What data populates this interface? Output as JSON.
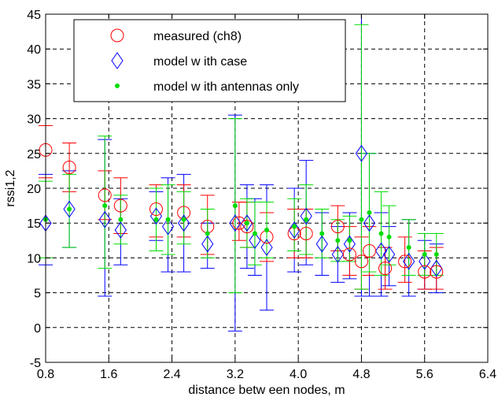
{
  "chart_data": {
    "type": "scatter",
    "title": "",
    "xlabel": "distance betw een nodes, m",
    "ylabel": "rssi1,2",
    "xlim": [
      0.8,
      6.4
    ],
    "ylim": [
      -5,
      45
    ],
    "xticks": [
      "0.8",
      "1.6",
      "2.4",
      "3.2",
      "4.0",
      "4.8",
      "5.6",
      "6.4"
    ],
    "yticks": [
      "-5",
      "0",
      "5",
      "10",
      "15",
      "20",
      "25",
      "30",
      "35",
      "40",
      "45"
    ],
    "grid": true,
    "legend_position": "top-left",
    "series": [
      {
        "name": "measured (ch8)",
        "marker": "circle",
        "color": "#ff0000",
        "points": [
          {
            "x": 0.8,
            "y": 25.5,
            "lo": 21.5,
            "hi": 29.0
          },
          {
            "x": 1.1,
            "y": 23.0,
            "lo": 19.5,
            "hi": 26.5
          },
          {
            "x": 1.55,
            "y": 19.0,
            "lo": 15.5,
            "hi": 22.5
          },
          {
            "x": 1.75,
            "y": 17.5,
            "lo": 13.5,
            "hi": 21.5
          },
          {
            "x": 2.2,
            "y": 17.0,
            "lo": 13.0,
            "hi": 20.5
          },
          {
            "x": 2.55,
            "y": 16.5,
            "lo": 13.0,
            "hi": 20.5
          },
          {
            "x": 2.85,
            "y": 14.5,
            "lo": 10.5,
            "hi": 19.0
          },
          {
            "x": 3.25,
            "y": 15.0,
            "lo": 12.5,
            "hi": 18.0
          },
          {
            "x": 3.35,
            "y": 14.5,
            "lo": 11.5,
            "hi": 18.0
          },
          {
            "x": 3.6,
            "y": 13.0,
            "lo": 9.5,
            "hi": 16.5
          },
          {
            "x": 3.95,
            "y": 13.5,
            "lo": 10.0,
            "hi": 17.0
          },
          {
            "x": 4.1,
            "y": 13.5,
            "lo": 10.0,
            "hi": 17.0
          },
          {
            "x": 4.5,
            "y": 14.5,
            "lo": 11.0,
            "hi": 17.5
          },
          {
            "x": 4.65,
            "y": 10.5,
            "lo": 7.5,
            "hi": 14.5
          },
          {
            "x": 4.8,
            "y": 9.5,
            "lo": 5.5,
            "hi": 13.0
          },
          {
            "x": 4.9,
            "y": 11.0,
            "lo": 7.5,
            "hi": 14.5
          },
          {
            "x": 5.1,
            "y": 8.5,
            "lo": 5.5,
            "hi": 11.5
          },
          {
            "x": 5.35,
            "y": 9.5,
            "lo": 6.5,
            "hi": 13.0
          },
          {
            "x": 5.6,
            "y": 8.0,
            "lo": 5.5,
            "hi": 11.0
          },
          {
            "x": 5.75,
            "y": 8.0,
            "lo": 5.5,
            "hi": 11.5
          }
        ]
      },
      {
        "name": "model w ith case",
        "marker": "diamond",
        "color": "#0000ff",
        "points": [
          {
            "x": 0.8,
            "y": 15.0,
            "lo": 9.0,
            "hi": 22.0
          },
          {
            "x": 1.1,
            "y": 17.0,
            "lo": 11.5,
            "hi": 22.5
          },
          {
            "x": 1.55,
            "y": 15.5,
            "lo": 4.5,
            "hi": 27.0
          },
          {
            "x": 1.75,
            "y": 14.0,
            "lo": 9.0,
            "hi": 18.5
          },
          {
            "x": 2.2,
            "y": 16.0,
            "lo": 12.5,
            "hi": 19.5
          },
          {
            "x": 2.35,
            "y": 14.5,
            "lo": 8.0,
            "hi": 21.5
          },
          {
            "x": 2.55,
            "y": 15.0,
            "lo": 8.0,
            "hi": 22.0
          },
          {
            "x": 2.85,
            "y": 12.0,
            "lo": 8.5,
            "hi": 15.0
          },
          {
            "x": 3.2,
            "y": 15.0,
            "lo": -0.5,
            "hi": 30.5
          },
          {
            "x": 3.35,
            "y": 15.0,
            "lo": 8.5,
            "hi": 20.5
          },
          {
            "x": 3.45,
            "y": 12.5,
            "lo": 7.5,
            "hi": 18.5
          },
          {
            "x": 3.6,
            "y": 11.5,
            "lo": 2.5,
            "hi": 20.5
          },
          {
            "x": 3.95,
            "y": 14.0,
            "lo": 8.0,
            "hi": 20.0
          },
          {
            "x": 4.1,
            "y": 16.0,
            "lo": 9.0,
            "hi": 24.0
          },
          {
            "x": 4.3,
            "y": 12.0,
            "lo": 7.5,
            "hi": 16.5
          },
          {
            "x": 4.5,
            "y": 10.5,
            "lo": 6.5,
            "hi": 14.5
          },
          {
            "x": 4.65,
            "y": 12.0,
            "lo": 7.0,
            "hi": 16.5
          },
          {
            "x": 4.8,
            "y": 25.0,
            "lo": 4.5,
            "hi": 45.0
          },
          {
            "x": 4.9,
            "y": 15.0,
            "lo": 4.5,
            "hi": 25.0
          },
          {
            "x": 5.05,
            "y": 11.0,
            "lo": 4.5,
            "hi": 16.5
          },
          {
            "x": 5.15,
            "y": 10.5,
            "lo": 6.0,
            "hi": 14.5
          },
          {
            "x": 5.4,
            "y": 9.5,
            "lo": 4.5,
            "hi": 15.5
          },
          {
            "x": 5.6,
            "y": 9.5,
            "lo": 5.5,
            "hi": 12.5
          },
          {
            "x": 5.75,
            "y": 8.5,
            "lo": 5.0,
            "hi": 12.0
          }
        ]
      },
      {
        "name": "model w ith antennas only",
        "marker": "dot",
        "color": "#00dd00",
        "points": [
          {
            "x": 0.8,
            "y": 15.5,
            "lo": 10.0,
            "hi": 21.0
          },
          {
            "x": 1.1,
            "y": 17.0,
            "lo": 11.5,
            "hi": 22.0
          },
          {
            "x": 1.55,
            "y": 17.5,
            "lo": 8.5,
            "hi": 27.5
          },
          {
            "x": 1.75,
            "y": 15.5,
            "lo": 12.0,
            "hi": 19.0
          },
          {
            "x": 2.2,
            "y": 15.5,
            "lo": 11.0,
            "hi": 20.0
          },
          {
            "x": 2.35,
            "y": 15.5,
            "lo": 10.5,
            "hi": 20.5
          },
          {
            "x": 2.55,
            "y": 15.5,
            "lo": 12.0,
            "hi": 19.5
          },
          {
            "x": 2.85,
            "y": 13.5,
            "lo": 10.0,
            "hi": 17.0
          },
          {
            "x": 3.2,
            "y": 17.5,
            "lo": 5.0,
            "hi": 30.0
          },
          {
            "x": 3.35,
            "y": 15.0,
            "lo": 11.5,
            "hi": 18.5
          },
          {
            "x": 3.45,
            "y": 13.5,
            "lo": 9.0,
            "hi": 18.0
          },
          {
            "x": 3.6,
            "y": 14.0,
            "lo": 10.0,
            "hi": 18.0
          },
          {
            "x": 3.95,
            "y": 14.5,
            "lo": 11.0,
            "hi": 18.5
          },
          {
            "x": 4.1,
            "y": 15.5,
            "lo": 10.5,
            "hi": 20.5
          },
          {
            "x": 4.3,
            "y": 13.5,
            "lo": 10.0,
            "hi": 17.0
          },
          {
            "x": 4.5,
            "y": 12.5,
            "lo": 9.5,
            "hi": 15.5
          },
          {
            "x": 4.65,
            "y": 12.5,
            "lo": 9.5,
            "hi": 16.0
          },
          {
            "x": 4.8,
            "y": 15.5,
            "lo": 5.5,
            "hi": 43.5
          },
          {
            "x": 4.9,
            "y": 16.5,
            "lo": 8.0,
            "hi": 25.0
          },
          {
            "x": 5.05,
            "y": 13.5,
            "lo": 7.5,
            "hi": 19.5
          },
          {
            "x": 5.15,
            "y": 13.0,
            "lo": 9.0,
            "hi": 17.5
          },
          {
            "x": 5.4,
            "y": 11.5,
            "lo": 7.5,
            "hi": 15.5
          },
          {
            "x": 5.6,
            "y": 10.5,
            "lo": 7.5,
            "hi": 13.5
          },
          {
            "x": 5.75,
            "y": 10.5,
            "lo": 7.5,
            "hi": 13.5
          }
        ]
      }
    ]
  }
}
